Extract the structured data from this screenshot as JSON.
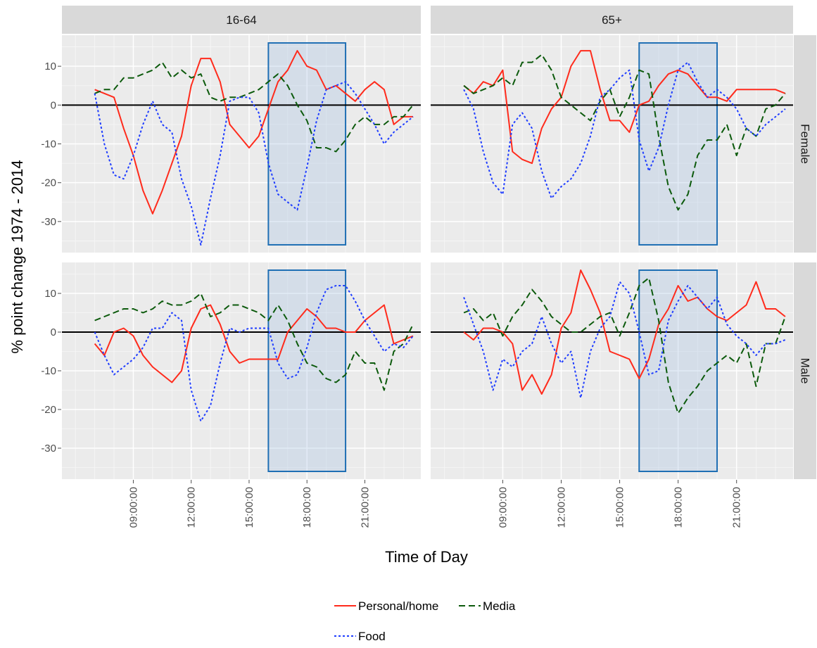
{
  "chart_data": {
    "type": "line",
    "xlabel": "Time of Day",
    "ylabel": "% point change 1974 - 2014",
    "x_ticks": [
      "09:00:00",
      "12:00:00",
      "15:00:00",
      "18:00:00",
      "21:00:00"
    ],
    "y_ticks": [
      10,
      0,
      -10,
      -20,
      -30
    ],
    "ylim": [
      -38,
      18
    ],
    "xlim_hours": [
      5.3,
      23.9
    ],
    "column_facets": [
      "16-64",
      "65+"
    ],
    "row_facets": [
      "Female",
      "Male"
    ],
    "highlight_window": {
      "from": "16:00",
      "to": "20:00",
      "ymin": -36,
      "ymax": 16
    },
    "legend": {
      "position": "bottom",
      "entries": [
        "Personal/home",
        "Media",
        "Food"
      ]
    },
    "series_styles": [
      {
        "name": "Personal/home",
        "color": "#ff2b1c",
        "dash": "solid"
      },
      {
        "name": "Media",
        "color": "#0c5a0c",
        "dash": "long-dash"
      },
      {
        "name": "Food",
        "color": "#1f3dff",
        "dash": "dotted"
      }
    ],
    "x": [
      7,
      7.5,
      8,
      8.5,
      9,
      9.5,
      10,
      10.5,
      11,
      11.5,
      12,
      12.5,
      13,
      13.5,
      14,
      14.5,
      15,
      15.5,
      16,
      16.5,
      17,
      17.5,
      18,
      18.5,
      19,
      19.5,
      20,
      20.5,
      21,
      21.5,
      22,
      22.5,
      23,
      23.5
    ],
    "panels": [
      {
        "col": "16-64",
        "row": "Female",
        "series": [
          {
            "name": "Personal/home",
            "values": [
              4,
              3,
              2,
              -6,
              -13,
              -22,
              -28,
              -22,
              -15,
              -8,
              5,
              12,
              12,
              6,
              -5,
              -8,
              -11,
              -8,
              -1,
              6,
              9,
              14,
              10,
              9,
              4,
              5,
              3,
              1,
              4,
              6,
              4,
              -5,
              -3,
              -3
            ]
          },
          {
            "name": "Media",
            "values": [
              3,
              4,
              4,
              7,
              7,
              8,
              9,
              11,
              7,
              9,
              7,
              8,
              2,
              1,
              2,
              2,
              3,
              4,
              6,
              8,
              5,
              0,
              -4,
              -11,
              -11,
              -12,
              -9,
              -5,
              -3,
              -5,
              -5,
              -3,
              -3,
              0
            ]
          },
          {
            "name": "Food",
            "values": [
              3,
              -10,
              -18,
              -19,
              -13,
              -5,
              1,
              -5,
              -7,
              -19,
              -26,
              -36,
              -24,
              -13,
              1,
              2,
              2,
              -2,
              -15,
              -23,
              -25,
              -27,
              -16,
              -4,
              4,
              5,
              6,
              3,
              -1,
              -5,
              -10,
              -7,
              -5,
              -3
            ]
          }
        ]
      },
      {
        "col": "65+",
        "row": "Female",
        "series": [
          {
            "name": "Personal/home",
            "values": [
              5,
              3,
              6,
              5,
              9,
              -12,
              -14,
              -15,
              -6,
              -1,
              2,
              10,
              14,
              14,
              4,
              -4,
              -4,
              -7,
              0,
              1,
              5,
              8,
              9,
              8,
              5,
              2,
              2,
              1,
              4,
              4,
              4,
              4,
              4,
              3
            ]
          },
          {
            "name": "Media",
            "values": [
              5,
              3,
              4,
              5,
              7,
              5,
              11,
              11,
              13,
              9,
              2,
              0,
              -2,
              -4,
              1,
              4,
              -3,
              2,
              9,
              8,
              -8,
              -21,
              -27,
              -23,
              -13,
              -9,
              -9,
              -5,
              -13,
              -6,
              -8,
              -1,
              0,
              3
            ]
          },
          {
            "name": "Food",
            "values": [
              4,
              -1,
              -12,
              -20,
              -23,
              -5,
              -2,
              -6,
              -17,
              -24,
              -21,
              -19,
              -15,
              -8,
              2,
              4,
              7,
              9,
              -9,
              -17,
              -11,
              0,
              9,
              11,
              6,
              2,
              4,
              2,
              -1,
              -6,
              -8,
              -5,
              -3,
              -1
            ]
          }
        ]
      },
      {
        "col": "16-64",
        "row": "Male",
        "series": [
          {
            "name": "Personal/home",
            "values": [
              -3,
              -6,
              0,
              1,
              -1,
              -6,
              -9,
              -11,
              -13,
              -10,
              1,
              6,
              7,
              2,
              -5,
              -8,
              -7,
              -7,
              -7,
              -7,
              0,
              3,
              6,
              4,
              1,
              1,
              0,
              0,
              3,
              5,
              7,
              -3,
              -2,
              -1
            ]
          },
          {
            "name": "Media",
            "values": [
              3,
              4,
              5,
              6,
              6,
              5,
              6,
              8,
              7,
              7,
              8,
              10,
              4,
              5,
              7,
              7,
              6,
              5,
              3,
              7,
              3,
              -3,
              -8,
              -9,
              -12,
              -13,
              -11,
              -5,
              -8,
              -8,
              -15,
              -5,
              -3,
              2
            ]
          },
          {
            "name": "Food",
            "values": [
              0,
              -6,
              -11,
              -9,
              -7,
              -4,
              1,
              1,
              5,
              3,
              -15,
              -23,
              -19,
              -8,
              1,
              0,
              1,
              1,
              1,
              -8,
              -12,
              -11,
              -4,
              5,
              11,
              12,
              12,
              8,
              3,
              -1,
              -5,
              -3,
              -4,
              -1
            ]
          }
        ]
      },
      {
        "col": "65+",
        "row": "Male",
        "series": [
          {
            "name": "Personal/home",
            "values": [
              0,
              -2,
              1,
              1,
              0,
              -3,
              -15,
              -11,
              -16,
              -11,
              1,
              5,
              16,
              11,
              5,
              -5,
              -6,
              -7,
              -12,
              -7,
              2,
              6,
              12,
              8,
              9,
              6,
              4,
              3,
              5,
              7,
              13,
              6,
              6,
              4
            ]
          },
          {
            "name": "Media",
            "values": [
              5,
              6,
              3,
              5,
              -1,
              4,
              7,
              11,
              8,
              4,
              2,
              0,
              0,
              2,
              4,
              5,
              -1,
              5,
              12,
              14,
              3,
              -13,
              -21,
              -17,
              -14,
              -10,
              -8,
              -6,
              -8,
              -3,
              -14,
              -3,
              -3,
              4
            ]
          },
          {
            "name": "Food",
            "values": [
              9,
              2,
              -5,
              -15,
              -7,
              -9,
              -5,
              -3,
              4,
              -3,
              -8,
              -5,
              -17,
              -5,
              1,
              4,
              13,
              10,
              0,
              -11,
              -10,
              3,
              8,
              12,
              9,
              6,
              9,
              2,
              -1,
              -3,
              -6,
              -3,
              -3,
              -2
            ]
          }
        ]
      }
    ]
  }
}
